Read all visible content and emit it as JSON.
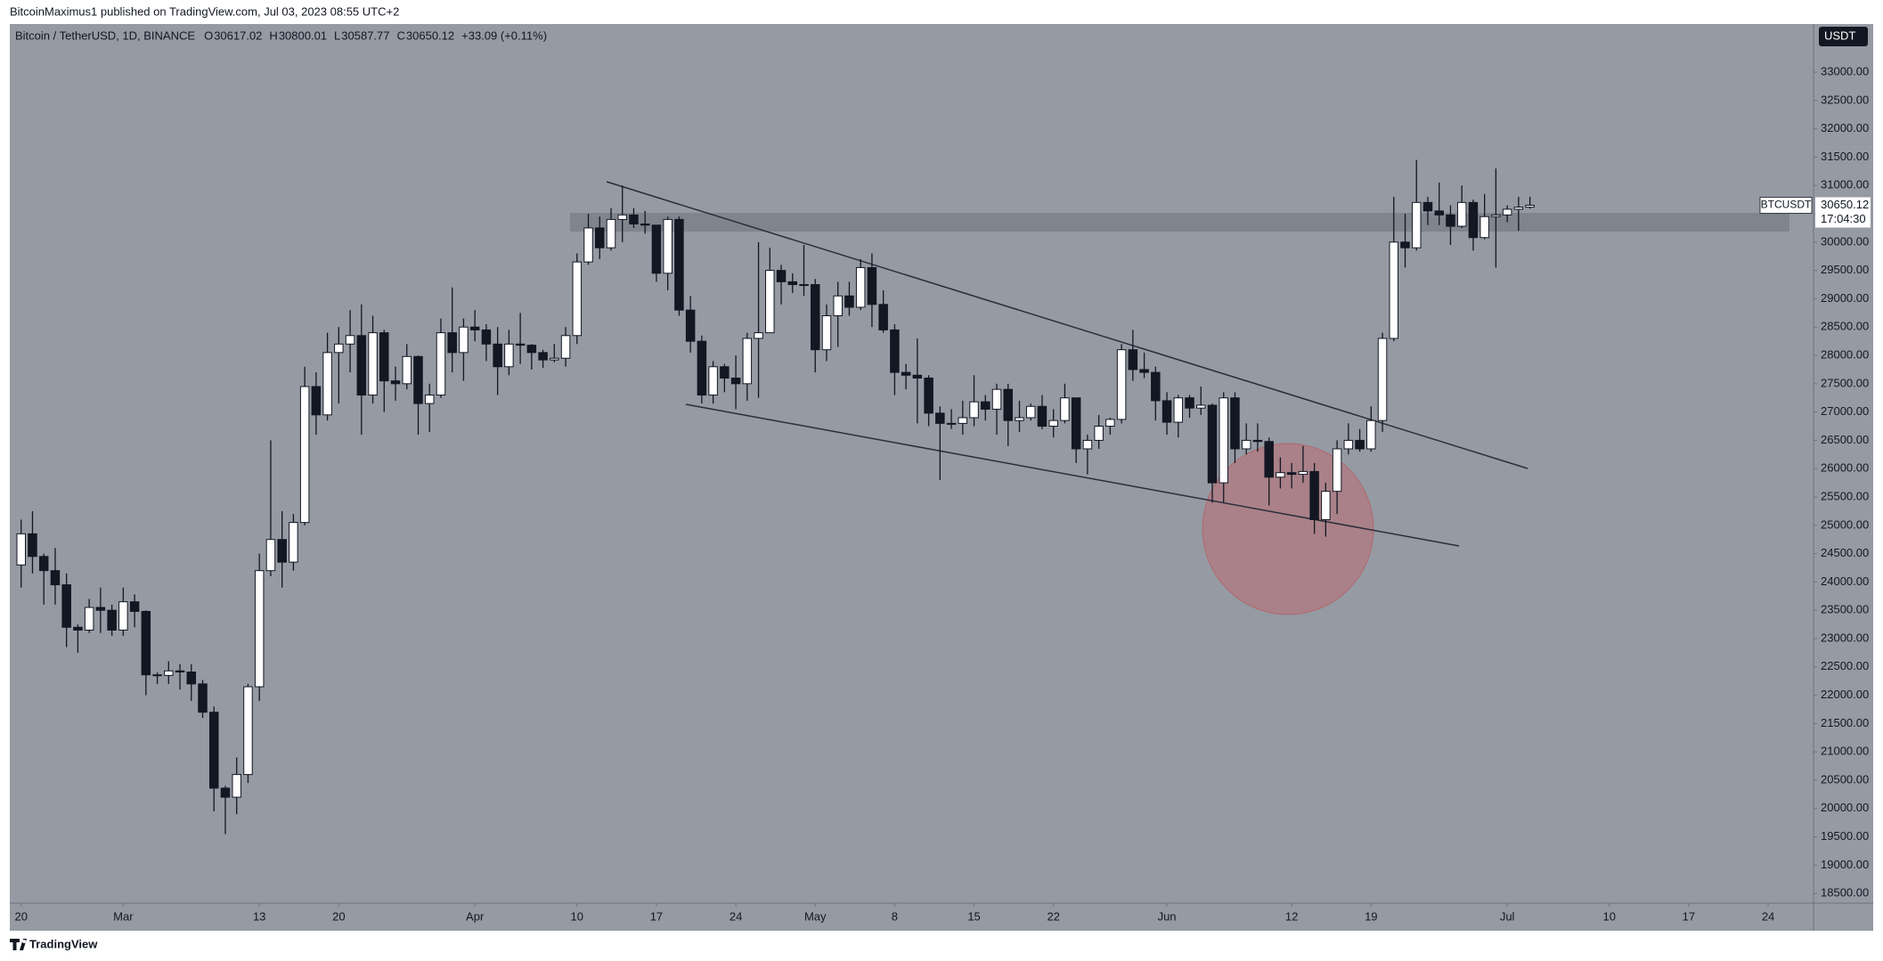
{
  "header": {
    "publisher": "BitcoinMaximus1 published on TradingView.com, Jul 03, 2023 08:55 UTC+2"
  },
  "legend": {
    "symbol": "Bitcoin / TetherUSD, 1D, BINANCE",
    "labels": [
      "O",
      "H",
      "L",
      "C"
    ],
    "change": "+33.09 (+0.11%)"
  },
  "currency": "USDT",
  "price_tag": {
    "symbol": "BTCUSDT",
    "countdown": "17:04:30"
  },
  "footer": {
    "brand": "TradingView"
  },
  "chart_data": {
    "type": "candlestick",
    "up_color": "#ffffff",
    "down_color": "#131722",
    "wick_color": "#131722",
    "x": [
      "Feb 20",
      "Feb 21",
      "Feb 22",
      "Feb 23",
      "Feb 24",
      "Feb 25",
      "Feb 26",
      "Feb 27",
      "Feb 28",
      "Mar 1",
      "Mar 2",
      "Mar 3",
      "Mar 4",
      "Mar 5",
      "Mar 6",
      "Mar 7",
      "Mar 8",
      "Mar 9",
      "Mar 10",
      "Mar 11",
      "Mar 12",
      "Mar 13",
      "Mar 14",
      "Mar 15",
      "Mar 16",
      "Mar 17",
      "Mar 18",
      "Mar 19",
      "Mar 20",
      "Mar 21",
      "Mar 22",
      "Mar 23",
      "Mar 24",
      "Mar 25",
      "Mar 26",
      "Mar 27",
      "Mar 28",
      "Mar 29",
      "Mar 30",
      "Mar 31",
      "Apr 1",
      "Apr 2",
      "Apr 3",
      "Apr 4",
      "Apr 5",
      "Apr 6",
      "Apr 7",
      "Apr 8",
      "Apr 9",
      "Apr 10",
      "Apr 11",
      "Apr 12",
      "Apr 13",
      "Apr 14",
      "Apr 15",
      "Apr 16",
      "Apr 17",
      "Apr 18",
      "Apr 19",
      "Apr 20",
      "Apr 21",
      "Apr 22",
      "Apr 23",
      "Apr 24",
      "Apr 25",
      "Apr 26",
      "Apr 27",
      "Apr 28",
      "Apr 29",
      "Apr 30",
      "May 1",
      "May 2",
      "May 3",
      "May 4",
      "May 5",
      "May 6",
      "May 7",
      "May 8",
      "May 9",
      "May 10",
      "May 11",
      "May 12",
      "May 13",
      "May 14",
      "May 15",
      "May 16",
      "May 17",
      "May 18",
      "May 19",
      "May 20",
      "May 21",
      "May 22",
      "May 23",
      "May 24",
      "May 25",
      "May 26",
      "May 27",
      "May 28",
      "May 29",
      "May 30",
      "May 31",
      "Jun 1",
      "Jun 2",
      "Jun 3",
      "Jun 4",
      "Jun 5",
      "Jun 6",
      "Jun 7",
      "Jun 8",
      "Jun 9",
      "Jun 10",
      "Jun 11",
      "Jun 12",
      "Jun 13",
      "Jun 14",
      "Jun 15",
      "Jun 16",
      "Jun 17",
      "Jun 18",
      "Jun 19",
      "Jun 20",
      "Jun 21",
      "Jun 22",
      "Jun 23",
      "Jun 24",
      "Jun 25",
      "Jun 26",
      "Jun 27",
      "Jun 28",
      "Jun 29",
      "Jun 30",
      "Jul 1",
      "Jul 2",
      "Jul 3"
    ],
    "open": [
      24300,
      24850,
      24450,
      24200,
      23950,
      23200,
      23150,
      23550,
      23500,
      23150,
      23650,
      23480,
      22360,
      22350,
      22430,
      22410,
      22200,
      21700,
      20360,
      20200,
      20600,
      22150,
      24200,
      24750,
      24350,
      25050,
      27450,
      26950,
      28050,
      28200,
      28350,
      27300,
      28400,
      27550,
      27500,
      27980,
      27150,
      27300,
      28400,
      28050,
      28500,
      28450,
      28200,
      27800,
      28200,
      28180,
      28050,
      27920,
      27950,
      28350,
      29650,
      30250,
      29900,
      30400,
      30480,
      30320,
      30300,
      29450,
      30400,
      28800,
      28250,
      27300,
      27800,
      27600,
      27500,
      28300,
      28400,
      29500,
      29300,
      29250,
      29250,
      28100,
      28700,
      29050,
      28850,
      29550,
      28900,
      28450,
      27700,
      27650,
      27600,
      26980,
      26800,
      26800,
      26900,
      27180,
      27050,
      27400,
      26850,
      26900,
      27100,
      26750,
      26850,
      27250,
      26350,
      26500,
      26750,
      26870,
      28100,
      27750,
      27700,
      27200,
      26820,
      27250,
      27070,
      27120,
      25750,
      27250,
      26350,
      26500,
      26480,
      25850,
      25930,
      25900,
      25950,
      25100,
      25600,
      26350,
      26500,
      26350,
      26850,
      28300,
      30000,
      29900,
      30700,
      30550,
      30480,
      30280,
      30700,
      30080,
      30450,
      30480,
      30580,
      30617.02
    ],
    "high": [
      25100,
      25250,
      24500,
      24600,
      24150,
      23250,
      23700,
      23900,
      23600,
      23900,
      23780,
      23500,
      22400,
      22600,
      22550,
      22550,
      22270,
      21800,
      20400,
      20900,
      22200,
      24500,
      26500,
      25250,
      25200,
      27800,
      27700,
      28400,
      28500,
      28800,
      28900,
      28700,
      28450,
      27800,
      28200,
      28000,
      27500,
      28650,
      29200,
      28650,
      28800,
      28550,
      28500,
      28450,
      28750,
      28200,
      28100,
      28200,
      28500,
      29800,
      30500,
      30450,
      30600,
      31000,
      30600,
      30550,
      30300,
      30450,
      30450,
      29050,
      28350,
      27900,
      27850,
      28000,
      28400,
      30000,
      29900,
      29600,
      29450,
      29950,
      29350,
      28900,
      29300,
      29300,
      29700,
      29800,
      29150,
      28550,
      27850,
      28300,
      27650,
      27100,
      27050,
      27200,
      27650,
      27300,
      27500,
      27500,
      27200,
      27150,
      27300,
      27050,
      27500,
      27250,
      26600,
      26950,
      26900,
      28200,
      28450,
      28050,
      27800,
      27350,
      27300,
      27300,
      27450,
      27150,
      27350,
      27350,
      26800,
      26800,
      26550,
      26200,
      26100,
      26400,
      26100,
      25750,
      26500,
      26800,
      26700,
      27100,
      28400,
      30800,
      30500,
      31450,
      30800,
      31050,
      30650,
      31000,
      30750,
      30850,
      31300,
      30650,
      30800,
      30800.01
    ],
    "low": [
      23900,
      24150,
      23600,
      23600,
      22850,
      22750,
      23100,
      23100,
      23050,
      23050,
      23200,
      22000,
      22200,
      22200,
      22100,
      21900,
      21600,
      19950,
      19550,
      19900,
      20450,
      21900,
      24100,
      23900,
      24200,
      25000,
      26600,
      26850,
      27150,
      27700,
      26600,
      27150,
      27000,
      27200,
      27400,
      26600,
      26650,
      27250,
      27700,
      27550,
      28250,
      27900,
      27300,
      27650,
      27850,
      27750,
      27780,
      27880,
      27800,
      28200,
      29600,
      29700,
      29850,
      30000,
      30250,
      30150,
      29300,
      29150,
      28700,
      28050,
      27150,
      27150,
      27350,
      27050,
      27200,
      27250,
      28400,
      28900,
      29100,
      29050,
      27700,
      27900,
      28150,
      28700,
      28800,
      28500,
      28400,
      27300,
      27400,
      26800,
      26750,
      25800,
      26700,
      26600,
      26750,
      26850,
      26600,
      26400,
      26650,
      26850,
      26700,
      26550,
      26800,
      26100,
      25900,
      26350,
      26600,
      26800,
      27550,
      27600,
      26850,
      26600,
      26550,
      26900,
      26950,
      25400,
      25400,
      26100,
      26250,
      26300,
      25350,
      25650,
      25650,
      25750,
      24850,
      24800,
      25200,
      26250,
      26300,
      26300,
      26650,
      28250,
      29550,
      29850,
      30300,
      30300,
      29950,
      30250,
      29850,
      30050,
      29550,
      30350,
      30200,
      30587.77
    ],
    "close": [
      24850,
      24450,
      24200,
      23950,
      23200,
      23150,
      23550,
      23500,
      23150,
      23650,
      23480,
      22360,
      22350,
      22430,
      22410,
      22200,
      21700,
      20360,
      20200,
      20600,
      22150,
      24200,
      24750,
      24350,
      25050,
      27450,
      26950,
      28050,
      28200,
      28350,
      27300,
      28400,
      27550,
      27500,
      27980,
      27150,
      27300,
      28400,
      28050,
      28500,
      28450,
      28200,
      27800,
      28200,
      28180,
      28050,
      27920,
      27950,
      28350,
      29650,
      30250,
      29900,
      30400,
      30480,
      30320,
      30300,
      29450,
      30400,
      28800,
      28250,
      27300,
      27800,
      27600,
      27500,
      28300,
      28400,
      29500,
      29300,
      29250,
      29250,
      28100,
      28700,
      29050,
      28850,
      29550,
      28900,
      28450,
      27700,
      27650,
      27600,
      26980,
      26800,
      26800,
      26900,
      27180,
      27050,
      27400,
      26850,
      26900,
      27100,
      26750,
      26850,
      27250,
      26350,
      26500,
      26750,
      26870,
      28100,
      27750,
      27700,
      27200,
      26820,
      27250,
      27070,
      27120,
      25750,
      27250,
      26350,
      26500,
      26480,
      25850,
      25930,
      25900,
      25950,
      25100,
      25600,
      26350,
      26500,
      26350,
      26850,
      28300,
      30000,
      29900,
      30700,
      30550,
      30480,
      30280,
      30700,
      30080,
      30450,
      30480,
      30580,
      30617.02,
      30650.12
    ],
    "xlim": [
      "Feb 19",
      "Jul 28"
    ],
    "xticks": [
      {
        "value": "Feb 20",
        "label": "20"
      },
      {
        "value": "Mar 1",
        "label": "Mar"
      },
      {
        "value": "Mar 13",
        "label": "13"
      },
      {
        "value": "Mar 20",
        "label": "20"
      },
      {
        "value": "Apr 1",
        "label": "Apr"
      },
      {
        "value": "Apr 10",
        "label": "10"
      },
      {
        "value": "Apr 17",
        "label": "17"
      },
      {
        "value": "Apr 24",
        "label": "24"
      },
      {
        "value": "May 1",
        "label": "May"
      },
      {
        "value": "May 8",
        "label": "8"
      },
      {
        "value": "May 15",
        "label": "15"
      },
      {
        "value": "May 22",
        "label": "22"
      },
      {
        "value": "Jun 1",
        "label": "Jun"
      },
      {
        "value": "Jun 12",
        "label": "12"
      },
      {
        "value": "Jun 19",
        "label": "19"
      },
      {
        "value": "Jul 1",
        "label": "Jul"
      },
      {
        "value": "Jul 10",
        "label": "10"
      },
      {
        "value": "Jul 17",
        "label": "17"
      },
      {
        "value": "Jul 24",
        "label": "24"
      }
    ],
    "ylim": [
      18330,
      33850
    ],
    "yticks": [
      {
        "value": 18500,
        "label": "18500.00"
      },
      {
        "value": 19000,
        "label": "19000.00"
      },
      {
        "value": 19500,
        "label": "19500.00"
      },
      {
        "value": 20000,
        "label": "20000.00"
      },
      {
        "value": 20500,
        "label": "20500.00"
      },
      {
        "value": 21000,
        "label": "21000.00"
      },
      {
        "value": 21500,
        "label": "21500.00"
      },
      {
        "value": 22000,
        "label": "22000.00"
      },
      {
        "value": 22500,
        "label": "22500.00"
      },
      {
        "value": 23000,
        "label": "23000.00"
      },
      {
        "value": 23500,
        "label": "23500.00"
      },
      {
        "value": 24000,
        "label": "24000.00"
      },
      {
        "value": 24500,
        "label": "24500.00"
      },
      {
        "value": 25000,
        "label": "25000.00"
      },
      {
        "value": 25500,
        "label": "25500.00"
      },
      {
        "value": 26000,
        "label": "26000.00"
      },
      {
        "value": 26500,
        "label": "26500.00"
      },
      {
        "value": 27000,
        "label": "27000.00"
      },
      {
        "value": 27500,
        "label": "27500.00"
      },
      {
        "value": 28000,
        "label": "28000.00"
      },
      {
        "value": 28500,
        "label": "28500.00"
      },
      {
        "value": 29000,
        "label": "29000.00"
      },
      {
        "value": 29500,
        "label": "29500.00"
      },
      {
        "value": 30000,
        "label": "30000.00"
      },
      {
        "value": 30500,
        "label": "30500.00"
      },
      {
        "value": 31000,
        "label": "31000.00"
      },
      {
        "value": 31500,
        "label": "31500.00"
      },
      {
        "value": 32000,
        "label": "32000.00"
      },
      {
        "value": 32500,
        "label": "32500.00"
      },
      {
        "value": 33000,
        "label": "33000.00"
      }
    ],
    "grid": false
  }
}
